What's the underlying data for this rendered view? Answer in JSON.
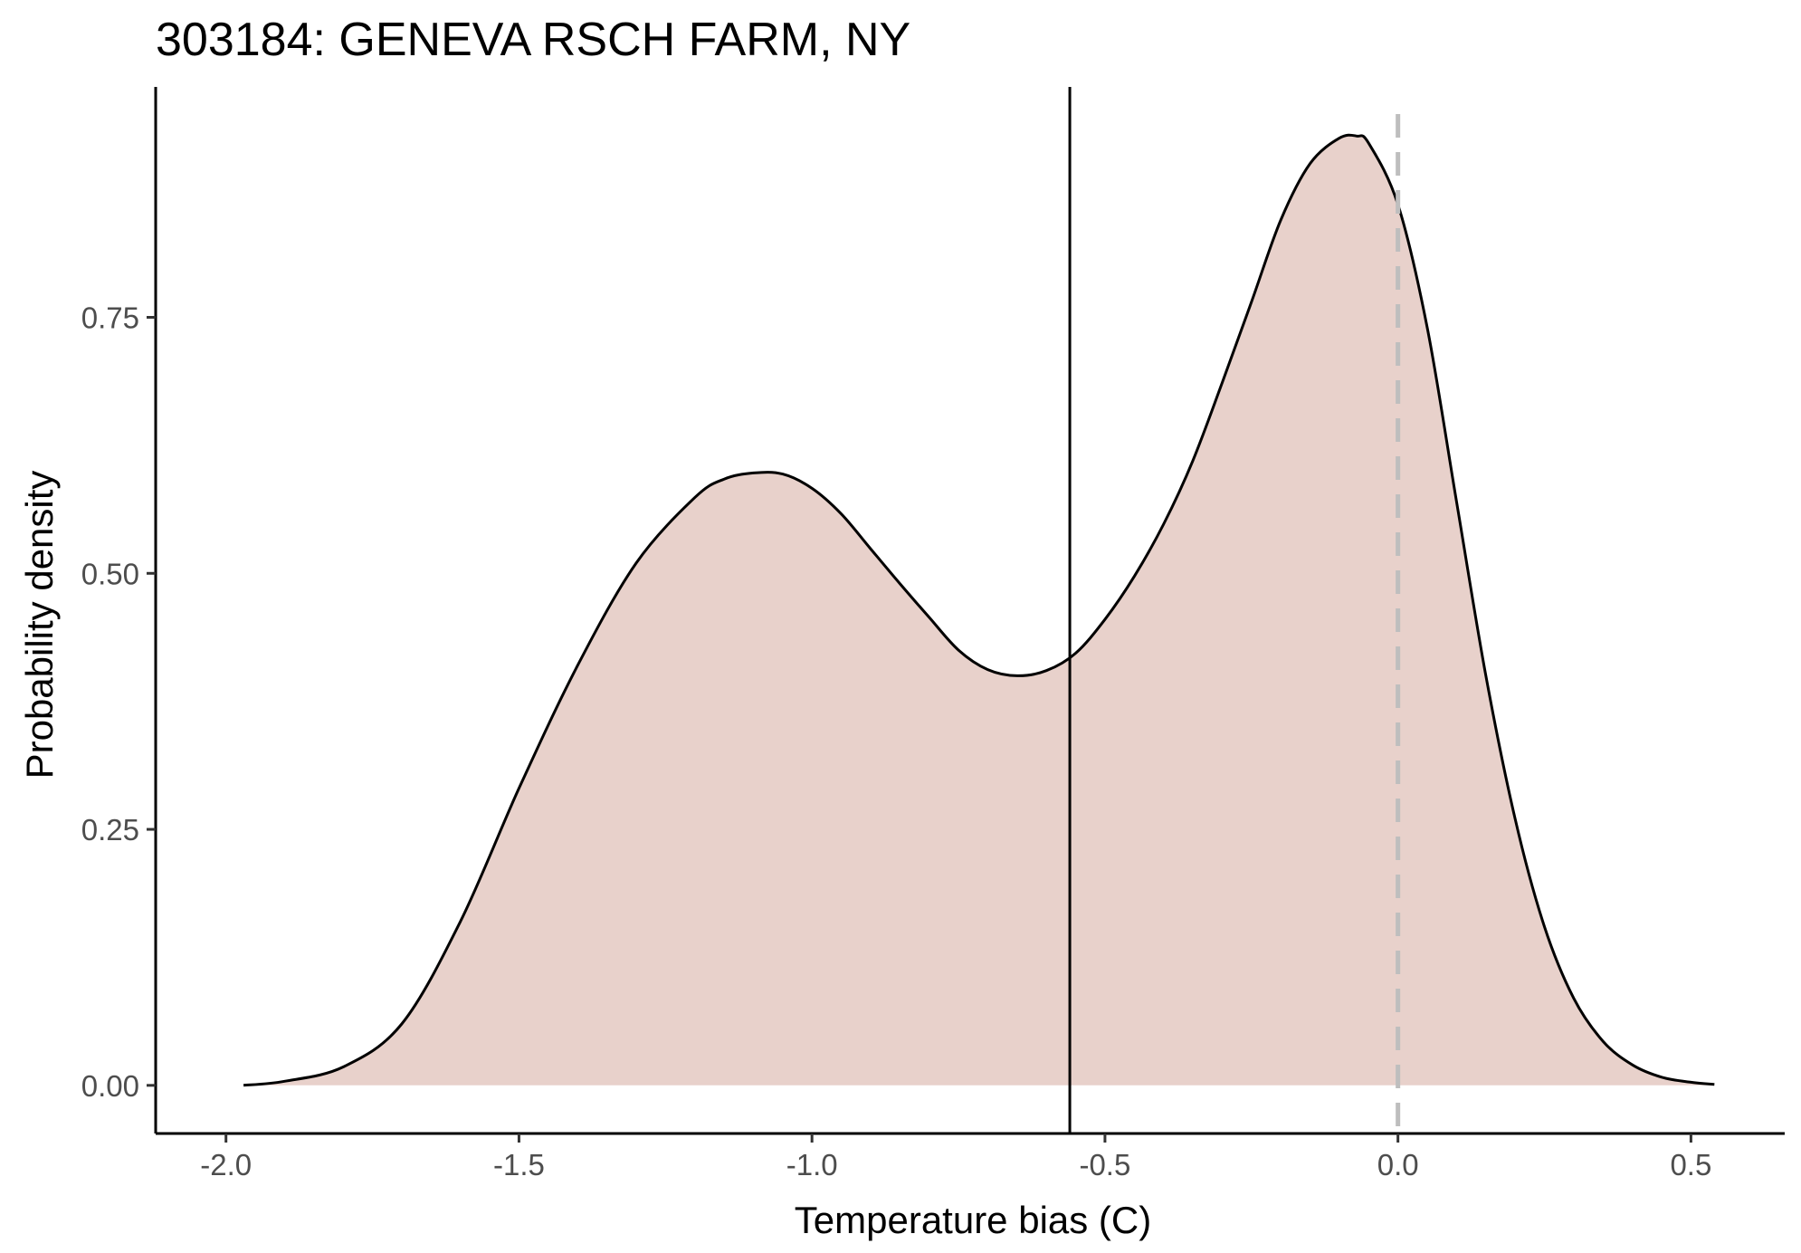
{
  "chart_data": {
    "type": "area",
    "title": "303184: GENEVA RSCH FARM, NY",
    "xlabel": "Temperature bias (C)",
    "ylabel": "Probability density",
    "xlim": [
      -2.12,
      0.66
    ],
    "ylim": [
      -0.047,
      0.975
    ],
    "x_ticks": [
      -2.0,
      -1.5,
      -1.0,
      -0.5,
      0.0,
      0.5
    ],
    "x_tick_labels": [
      "-2.0",
      "-1.5",
      "-1.0",
      "-0.5",
      "0.0",
      "0.5"
    ],
    "y_ticks": [
      0.0,
      0.25,
      0.5,
      0.75
    ],
    "y_tick_labels": [
      "0.00",
      "0.25",
      "0.50",
      "0.75"
    ],
    "grid": false,
    "series": [
      {
        "x": [
          -1.97,
          -1.9,
          -1.8,
          -1.7,
          -1.6,
          -1.5,
          -1.4,
          -1.3,
          -1.2,
          -1.15,
          -1.1,
          -1.05,
          -1.0,
          -0.95,
          -0.9,
          -0.85,
          -0.8,
          -0.75,
          -0.7,
          -0.65,
          -0.6,
          -0.55,
          -0.5,
          -0.45,
          -0.4,
          -0.35,
          -0.3,
          -0.25,
          -0.2,
          -0.15,
          -0.1,
          -0.07,
          -0.05,
          0.0,
          0.05,
          0.1,
          0.15,
          0.2,
          0.25,
          0.3,
          0.35,
          0.4,
          0.45,
          0.5,
          0.54
        ],
        "y": [
          0.0,
          0.004,
          0.018,
          0.06,
          0.16,
          0.29,
          0.41,
          0.51,
          0.574,
          0.592,
          0.598,
          0.597,
          0.583,
          0.558,
          0.524,
          0.49,
          0.457,
          0.425,
          0.406,
          0.4,
          0.405,
          0.422,
          0.455,
          0.497,
          0.548,
          0.61,
          0.686,
          0.765,
          0.845,
          0.9,
          0.925,
          0.927,
          0.92,
          0.86,
          0.74,
          0.57,
          0.4,
          0.26,
          0.155,
          0.085,
          0.043,
          0.02,
          0.008,
          0.003,
          0.001
        ]
      }
    ],
    "reference_lines": [
      {
        "axis": "x",
        "value": -0.56,
        "style": "solid",
        "color": "#000000"
      },
      {
        "axis": "x",
        "value": 0.0,
        "style": "dashed",
        "color": "#bebebe"
      }
    ],
    "colors": {
      "fill": "#e8d1cb",
      "line": "#000000",
      "axis": "#000000"
    }
  }
}
